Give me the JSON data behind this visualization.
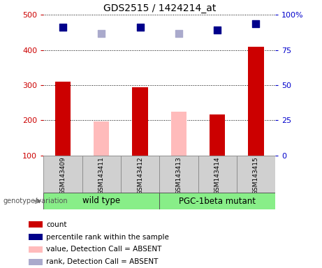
{
  "title": "GDS2515 / 1424214_at",
  "samples": [
    "GSM143409",
    "GSM143411",
    "GSM143412",
    "GSM143413",
    "GSM143414",
    "GSM143415"
  ],
  "bar_values": [
    310,
    197,
    293,
    225,
    217,
    408
  ],
  "bar_colors": [
    "#cc0000",
    "#ffbbbb",
    "#cc0000",
    "#ffbbbb",
    "#cc0000",
    "#cc0000"
  ],
  "dot_values": [
    465,
    447,
    465,
    447,
    456,
    475
  ],
  "dot_colors": [
    "#00008b",
    "#aaaacc",
    "#00008b",
    "#aaaacc",
    "#00008b",
    "#00008b"
  ],
  "ylim_left": [
    100,
    500
  ],
  "ylim_right": [
    0,
    100
  ],
  "yticks_left": [
    100,
    200,
    300,
    400,
    500
  ],
  "yticks_right": [
    0,
    25,
    50,
    75,
    100
  ],
  "yticklabels_right": [
    "0",
    "25",
    "50",
    "75",
    "100%"
  ],
  "left_axis_color": "#cc0000",
  "right_axis_color": "#0000cc",
  "legend_items": [
    {
      "label": "count",
      "color": "#cc0000"
    },
    {
      "label": "percentile rank within the sample",
      "color": "#00008b"
    },
    {
      "label": "value, Detection Call = ABSENT",
      "color": "#ffbbbb"
    },
    {
      "label": "rank, Detection Call = ABSENT",
      "color": "#aaaacc"
    }
  ],
  "bar_width": 0.4,
  "dot_size": 45,
  "genotype_label": "genotype/variation",
  "column_bg": "#d0d0d0",
  "plot_bg": "#ffffff",
  "group_labels": [
    "wild type",
    "PGC-1beta mutant"
  ],
  "group_color": "#88ee88"
}
